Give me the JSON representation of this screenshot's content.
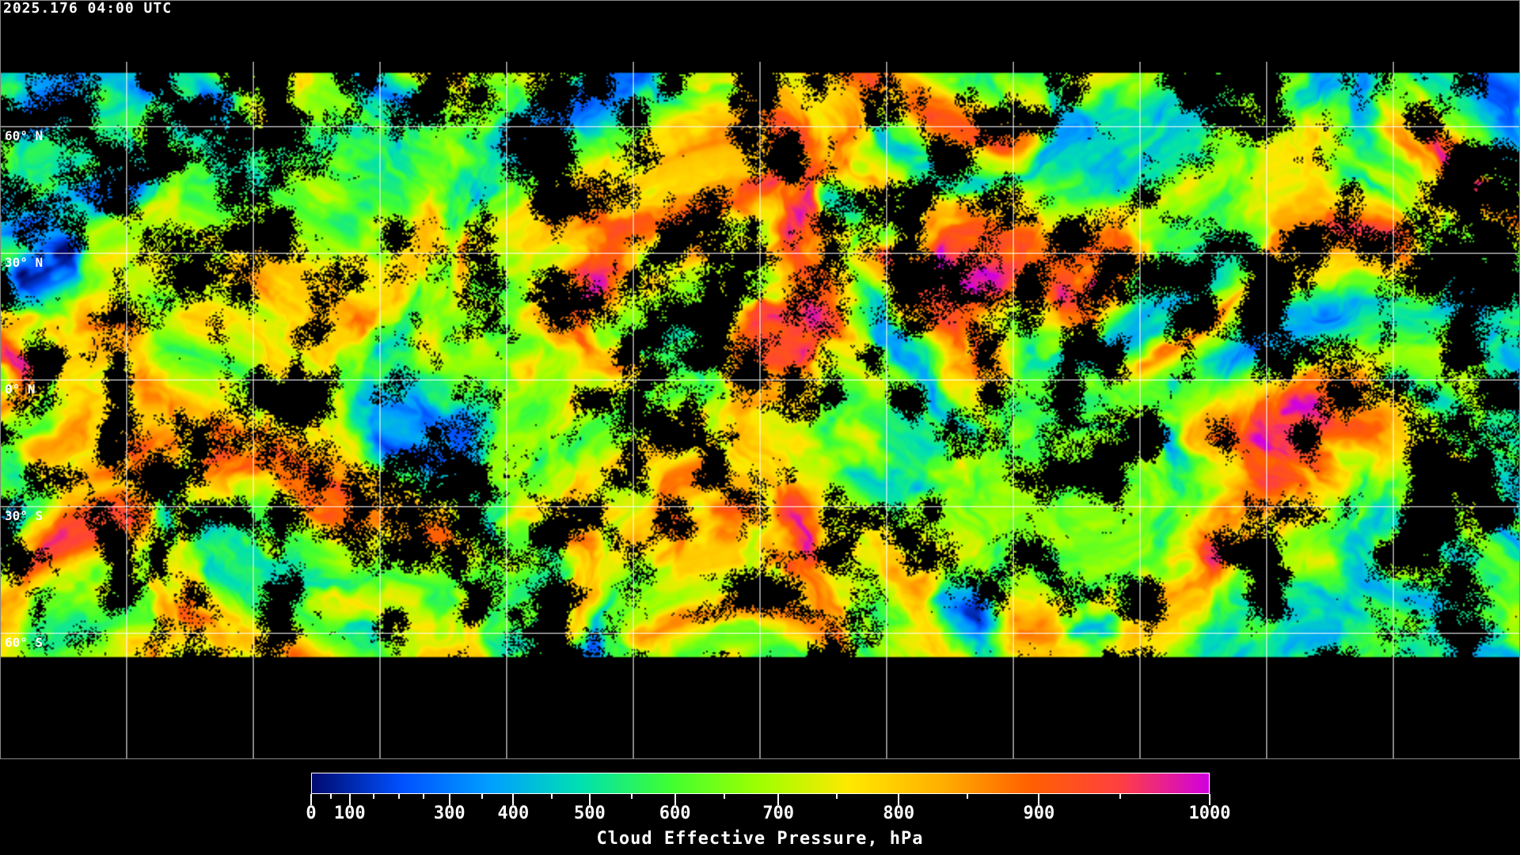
{
  "header": {
    "timestamp": "2025.176 04:00 UTC"
  },
  "map": {
    "projection": "equirectangular",
    "grid_spacing_deg": 30,
    "lat_labels": [
      "60° N",
      "30° N",
      "0° N",
      "30° S",
      "60° S"
    ],
    "background": "#000000",
    "coastline_color": "#ffffff",
    "grid_color": "#ffffff"
  },
  "colorbar": {
    "title": "Cloud Effective Pressure, hPa",
    "min": 0,
    "max": 1000,
    "tick_labels": [
      "0",
      "100",
      "300",
      "400",
      "500",
      "600",
      "700",
      "800",
      "900",
      "1000"
    ],
    "colors": [
      "#000a6e",
      "#0050ff",
      "#00a0ff",
      "#00e0b0",
      "#40ff30",
      "#a0ff00",
      "#ffe800",
      "#ffb000",
      "#ff6000",
      "#ff4040",
      "#d000e0"
    ]
  }
}
